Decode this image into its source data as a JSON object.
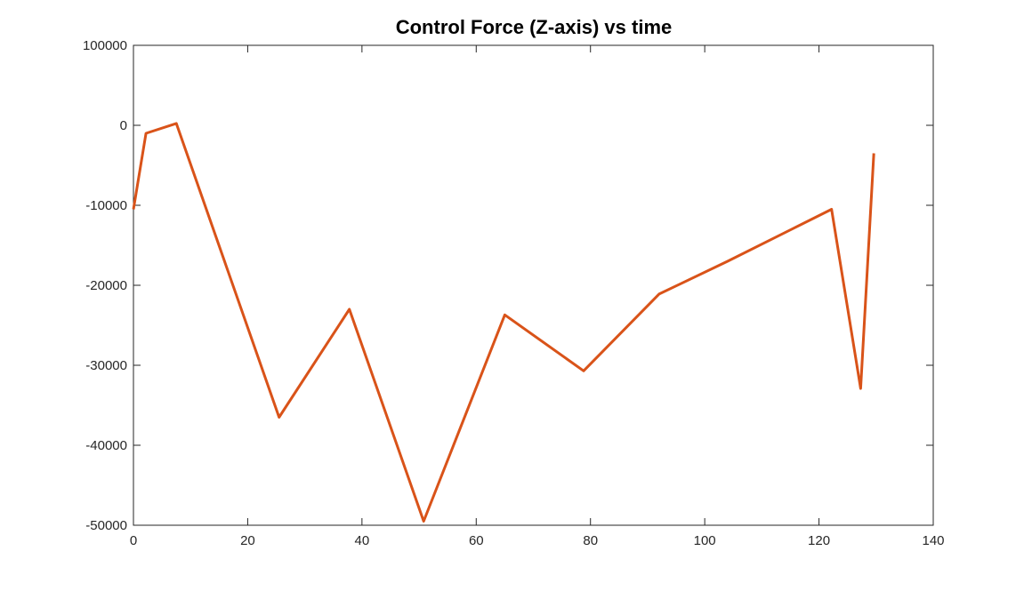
{
  "chart_data": {
    "type": "line",
    "title": "Control Force (Z-axis) vs time",
    "xlabel": "",
    "ylabel": "",
    "xlim": [
      0,
      140
    ],
    "ylim": [
      -50000,
      100000
    ],
    "xticks": [
      0,
      20,
      40,
      60,
      80,
      100,
      120,
      140
    ],
    "yticks": [
      -50000,
      -40000,
      -30000,
      -20000,
      -10000,
      0,
      100000
    ],
    "grid": false,
    "box": true,
    "series": [
      {
        "color": "#D95319",
        "x": [
          0,
          2.2,
          7.5,
          25.5,
          37.8,
          50.8,
          65.0,
          78.8,
          92.0,
          104.0,
          122.2,
          127.3,
          129.6
        ],
        "y": [
          -10500,
          -1000,
          2300,
          -36500,
          -23000,
          -49500,
          -23700,
          -30700,
          -21100,
          -17000,
          -10500,
          -32900,
          -3500
        ]
      }
    ]
  }
}
